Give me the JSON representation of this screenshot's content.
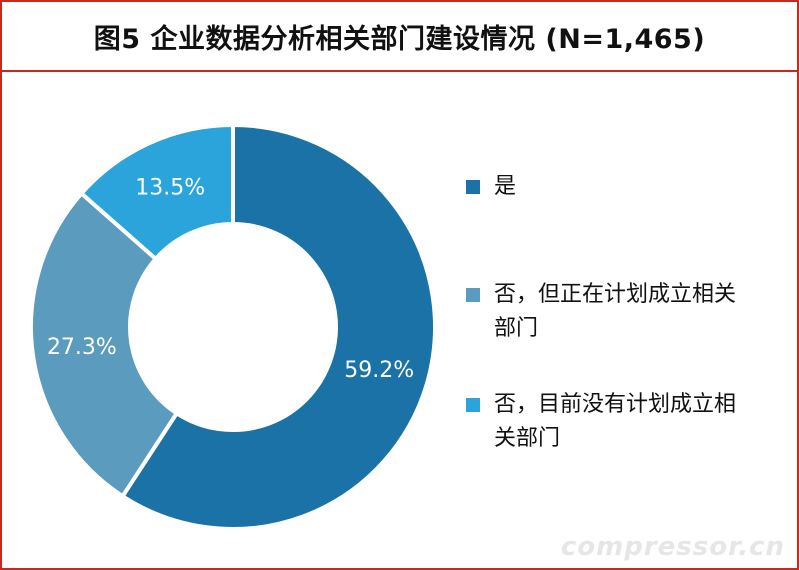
{
  "title": "图5 企业数据分析相关部门建设情况 (N=1,465)",
  "watermark": "compressor.cn",
  "chart_data": {
    "type": "pie",
    "title": "图5 企业数据分析相关部门建设情况 (N=1,465)",
    "donut": true,
    "categories": [
      "是",
      "否，但正在计划成立相关部门",
      "否，目前没有计划成立相关部门"
    ],
    "values": [
      59.2,
      27.3,
      13.5
    ],
    "labels": [
      "59.2%",
      "27.3%",
      "13.5%"
    ],
    "colors": [
      "#1b72a6",
      "#5b9bbd",
      "#2aa4db"
    ],
    "legend": "right"
  }
}
